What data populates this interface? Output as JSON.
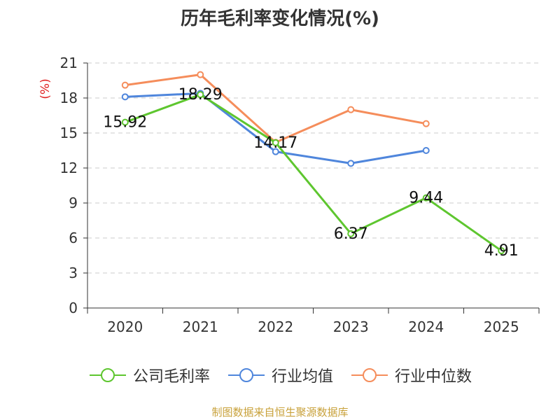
{
  "chart_data": {
    "type": "line",
    "title": "历年毛利率变化情况(%)",
    "ylabel": "(%)",
    "categories": [
      "2020",
      "2021",
      "2022",
      "2023",
      "2024",
      "2025"
    ],
    "ylim": [
      0,
      21
    ],
    "yticks": [
      0,
      3,
      6,
      9,
      12,
      15,
      18,
      21
    ],
    "grid": true,
    "legend_position": "bottom",
    "series": [
      {
        "name": "公司毛利率",
        "color": "#5ec62f",
        "labeled": true,
        "values": [
          15.92,
          18.29,
          14.17,
          6.37,
          9.44,
          4.91
        ]
      },
      {
        "name": "行业均值",
        "color": "#4f86dc",
        "labeled": false,
        "values": [
          18.1,
          18.4,
          13.4,
          12.4,
          13.5,
          null
        ]
      },
      {
        "name": "行业中位数",
        "color": "#f58d5b",
        "labeled": false,
        "values": [
          19.1,
          20.0,
          14.2,
          17.0,
          15.8,
          null
        ]
      }
    ]
  },
  "source_text": "制图数据来自恒生聚源数据库",
  "ylabel_color": "#e02020"
}
